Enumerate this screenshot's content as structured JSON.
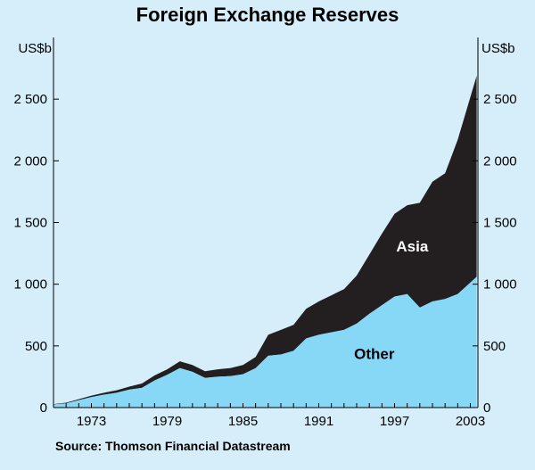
{
  "chart_data": {
    "type": "area",
    "title": "Foreign Exchange Reserves",
    "source": "Source: Thomson Financial Datastream",
    "ylabel_left": "US$b",
    "ylabel_right": "US$b",
    "ylim": [
      0,
      3000
    ],
    "yticks": [
      "0",
      "500",
      "1 000",
      "1 500",
      "2 000",
      "2 500"
    ],
    "yticks_right": [
      "0",
      "500",
      "1 000",
      "1 500",
      "2 000",
      "2 500"
    ],
    "xticks": [
      "1973",
      "1979",
      "1985",
      "1991",
      "1997",
      "2003"
    ],
    "xticks_values": [
      1973,
      1979,
      1985,
      1991,
      1997,
      2003
    ],
    "xlim": [
      1970,
      2003.6
    ],
    "grid": false,
    "stacking": "stacked",
    "colors": {
      "Other": "#87d7f7",
      "Asia": "#231f20",
      "background": "#d6eef9"
    },
    "x": [
      1970,
      1971,
      1972,
      1973,
      1974,
      1975,
      1976,
      1977,
      1978,
      1979,
      1980,
      1981,
      1982,
      1983,
      1984,
      1985,
      1986,
      1987,
      1988,
      1989,
      1990,
      1991,
      1992,
      1993,
      1994,
      1995,
      1996,
      1997,
      1998,
      1999,
      2000,
      2001,
      2002,
      2003.5
    ],
    "series": [
      {
        "name": "Other",
        "values": [
          25,
          35,
          60,
          85,
          105,
          120,
          145,
          160,
          220,
          265,
          320,
          290,
          240,
          250,
          255,
          270,
          320,
          420,
          430,
          460,
          560,
          590,
          610,
          630,
          680,
          760,
          830,
          900,
          920,
          810,
          860,
          880,
          920,
          1060
        ]
      },
      {
        "name": "Asia",
        "values": [
          3,
          5,
          8,
          12,
          15,
          20,
          25,
          35,
          40,
          45,
          55,
          55,
          55,
          60,
          65,
          75,
          90,
          170,
          200,
          210,
          240,
          270,
          300,
          330,
          390,
          480,
          580,
          670,
          720,
          850,
          970,
          1020,
          1250,
          1630
        ]
      }
    ],
    "series_labels": [
      "Asia",
      "Other"
    ]
  }
}
